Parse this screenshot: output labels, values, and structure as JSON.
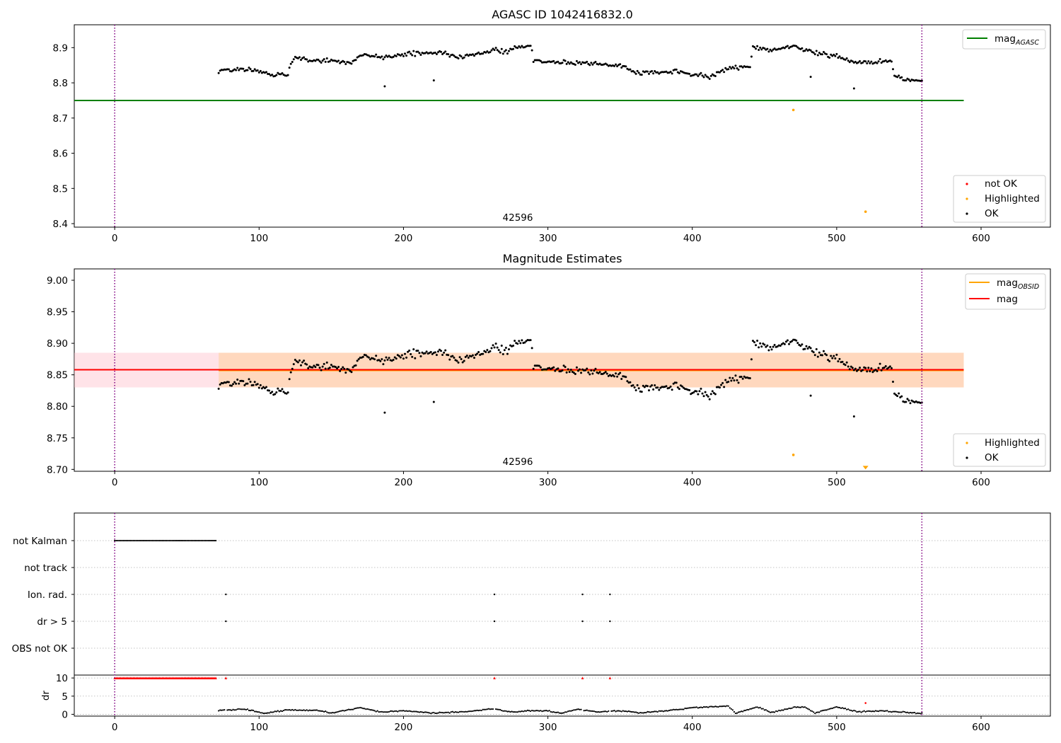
{
  "chart_data": [
    {
      "panel": "top",
      "type": "scatter",
      "title": "AGASC ID 1042416832.0",
      "obsid_label": "42596",
      "xlim": [
        -28,
        648
      ],
      "ylim": [
        8.39,
        8.965
      ],
      "xticks": [
        0,
        100,
        200,
        300,
        400,
        500,
        600
      ],
      "yticks": [
        8.4,
        8.5,
        8.6,
        8.7,
        8.8,
        8.9
      ],
      "vlines": [
        0,
        559
      ],
      "hline": {
        "label": "mag",
        "sub": "AGASC",
        "value": 8.75,
        "x": [
          -28,
          588
        ],
        "color": "#008000"
      },
      "legend_lines": [
        {
          "label": "mag",
          "sub": "AGASC",
          "color": "#008000"
        }
      ],
      "legend_points": [
        {
          "label": "not OK",
          "color": "#ff0000"
        },
        {
          "label": "Highlighted",
          "color": "#ffa500"
        },
        {
          "label": "OK",
          "color": "#000000"
        }
      ],
      "ok_trend": [
        [
          72,
          8.835
        ],
        [
          80,
          8.834
        ],
        [
          88,
          8.84
        ],
        [
          96,
          8.837
        ],
        [
          104,
          8.83
        ],
        [
          110,
          8.822
        ],
        [
          120,
          8.826
        ],
        [
          124,
          8.873
        ],
        [
          135,
          8.865
        ],
        [
          150,
          8.862
        ],
        [
          163,
          8.855
        ],
        [
          172,
          8.88
        ],
        [
          188,
          8.872
        ],
        [
          200,
          8.882
        ],
        [
          214,
          8.884
        ],
        [
          225,
          8.886
        ],
        [
          240,
          8.875
        ],
        [
          250,
          8.882
        ],
        [
          262,
          8.893
        ],
        [
          272,
          8.889
        ],
        [
          280,
          8.902
        ],
        [
          288,
          8.906
        ],
        [
          290,
          8.865
        ],
        [
          310,
          8.858
        ],
        [
          330,
          8.855
        ],
        [
          345,
          8.85
        ],
        [
          354,
          8.846
        ],
        [
          360,
          8.83
        ],
        [
          375,
          8.828
        ],
        [
          390,
          8.832
        ],
        [
          400,
          8.822
        ],
        [
          412,
          8.818
        ],
        [
          425,
          8.84
        ],
        [
          440,
          8.846
        ],
        [
          442,
          8.9
        ],
        [
          455,
          8.893
        ],
        [
          470,
          8.905
        ],
        [
          480,
          8.89
        ],
        [
          490,
          8.88
        ],
        [
          500,
          8.878
        ],
        [
          510,
          8.858
        ],
        [
          520,
          8.858
        ],
        [
          532,
          8.86
        ],
        [
          538,
          8.862
        ],
        [
          540,
          8.815
        ],
        [
          550,
          8.806
        ],
        [
          559,
          8.808
        ]
      ],
      "ok_outliers": [
        [
          187,
          8.79
        ],
        [
          221,
          8.807
        ],
        [
          482,
          8.817
        ],
        [
          512,
          8.784
        ]
      ],
      "highlighted": [
        [
          470,
          8.723
        ],
        [
          520,
          8.434
        ]
      ]
    },
    {
      "panel": "middle",
      "type": "scatter",
      "title": "Magnitude Estimates",
      "obsid_label": "42596",
      "xlim": [
        -28,
        648
      ],
      "ylim": [
        8.697,
        9.018
      ],
      "xticks": [
        0,
        100,
        200,
        300,
        400,
        500,
        600
      ],
      "yticks": [
        8.7,
        8.75,
        8.8,
        8.85,
        8.9,
        8.95,
        9.0
      ],
      "vlines": [
        0,
        559
      ],
      "mag": 8.858,
      "mag_obsid": 8.857,
      "band": [
        8.83,
        8.885
      ],
      "band_x": [
        -28,
        588
      ],
      "legend_lines": [
        {
          "label": "mag",
          "sub": "OBSID",
          "color": "#ffa500"
        },
        {
          "label": "mag",
          "sub": "",
          "color": "#ff0000"
        }
      ],
      "legend_points": [
        {
          "label": "Highlighted",
          "color": "#ffa500"
        },
        {
          "label": "OK",
          "color": "#000000"
        }
      ],
      "ok_outliers": [
        [
          187,
          8.79
        ],
        [
          221,
          8.807
        ],
        [
          482,
          8.817
        ],
        [
          512,
          8.784
        ]
      ],
      "highlighted": [
        [
          470,
          8.723
        ],
        [
          520,
          8.701
        ]
      ]
    },
    {
      "panel": "flags",
      "type": "scatter",
      "categories": [
        "not Kalman",
        "not track",
        "Ion. rad.",
        "dr > 5",
        "OBS not OK"
      ],
      "vlines": [
        0,
        559
      ],
      "not_kalman_range": [
        0,
        70
      ],
      "event_x": [
        77,
        263,
        324,
        343
      ]
    },
    {
      "panel": "dr",
      "type": "scatter",
      "ylabel": "dr",
      "yticks": [
        0,
        5,
        10
      ],
      "ylim": [
        -0.5,
        10.8
      ],
      "xticks": [
        0,
        100,
        200,
        300,
        400,
        500,
        600
      ],
      "xlim": [
        -28,
        648
      ],
      "vlines": [
        0,
        559
      ],
      "capped_value": 10,
      "highlight_point": [
        520,
        3.1
      ],
      "dr_trend": [
        [
          72,
          1.0
        ],
        [
          90,
          1.4
        ],
        [
          104,
          0.3
        ],
        [
          120,
          1.2
        ],
        [
          140,
          1.1
        ],
        [
          150,
          0.4
        ],
        [
          170,
          1.8
        ],
        [
          185,
          0.6
        ],
        [
          200,
          1.0
        ],
        [
          220,
          0.3
        ],
        [
          245,
          0.8
        ],
        [
          262,
          1.5
        ],
        [
          275,
          0.6
        ],
        [
          290,
          1.0
        ],
        [
          300,
          0.9
        ],
        [
          310,
          0.3
        ],
        [
          320,
          1.4
        ],
        [
          335,
          0.6
        ],
        [
          350,
          1.0
        ],
        [
          365,
          0.4
        ],
        [
          390,
          1.3
        ],
        [
          400,
          1.8
        ],
        [
          415,
          2.1
        ],
        [
          425,
          2.3
        ],
        [
          430,
          0.3
        ],
        [
          445,
          2.0
        ],
        [
          455,
          0.5
        ],
        [
          470,
          1.9
        ],
        [
          478,
          2.0
        ],
        [
          485,
          0.4
        ],
        [
          500,
          2.0
        ],
        [
          515,
          0.7
        ],
        [
          530,
          1.0
        ],
        [
          545,
          0.6
        ],
        [
          555,
          0.3
        ]
      ]
    }
  ]
}
